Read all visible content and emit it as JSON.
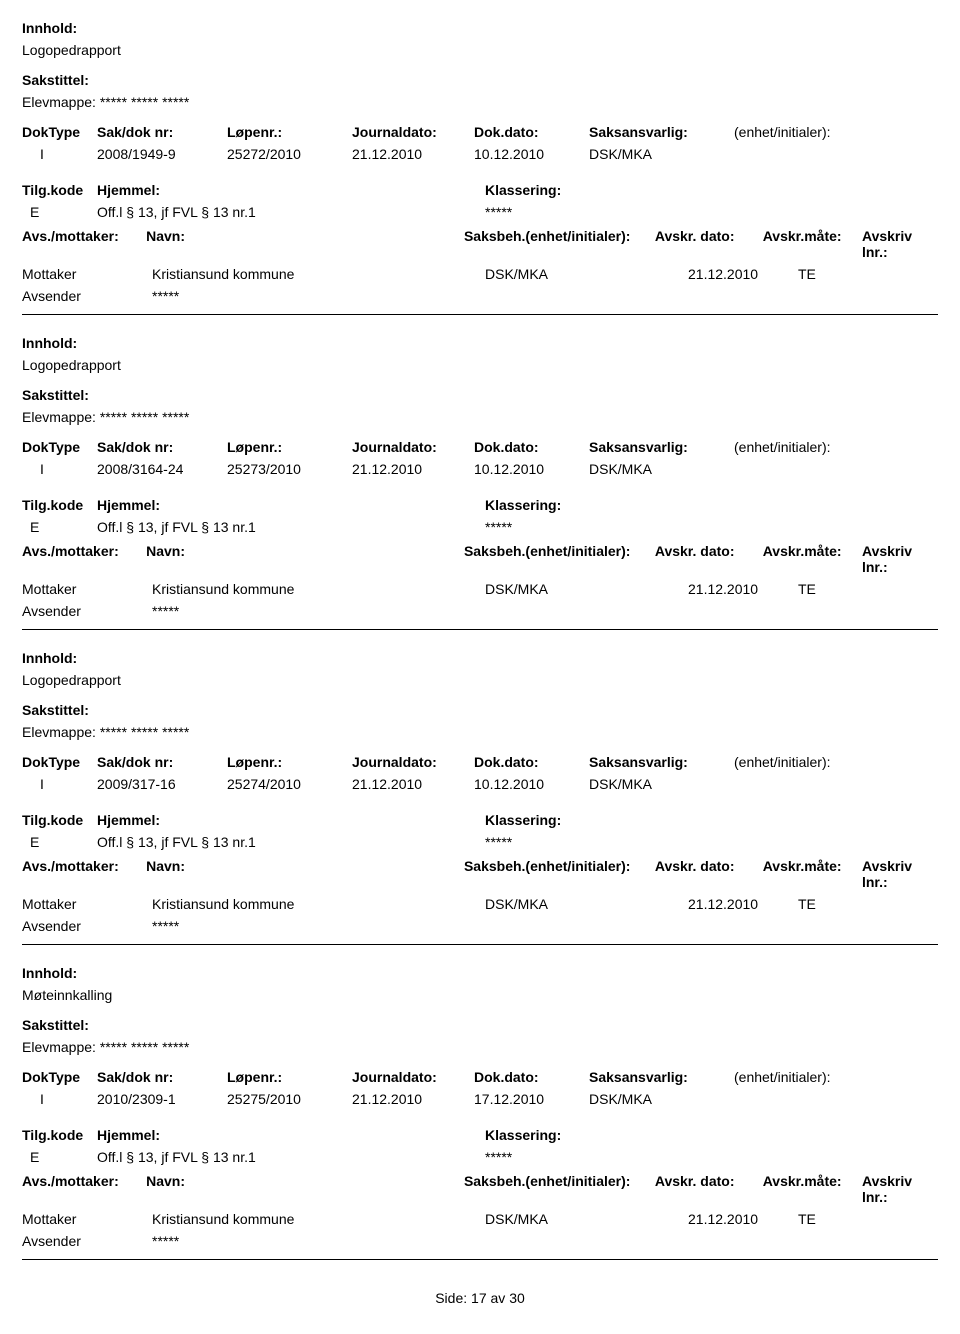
{
  "labels": {
    "innhold": "Innhold:",
    "sakstittel": "Sakstittel:",
    "doktype": "DokType",
    "sakdoknr": "Sak/dok nr:",
    "lopenr": "Løpenr.:",
    "journaldato": "Journaldato:",
    "dokdato": "Dok.dato:",
    "saksansvarlig": "Saksansvarlig:",
    "enhetinit": "(enhet/initialer):",
    "tilgkode": "Tilg.kode",
    "hjemmel": "Hjemmel:",
    "klassering": "Klassering:",
    "avsmottaker": "Avs./mottaker:",
    "navn": "Navn:",
    "saksbeh": "Saksbeh.(enhet/initialer):",
    "avskrdato": "Avskr. dato:",
    "avskrmate": "Avskr.måte:",
    "avskrivlnr": "Avskriv lnr.:",
    "mottaker": "Mottaker",
    "avsender": "Avsender"
  },
  "records": [
    {
      "innhold": "Logopedrapport",
      "sakstittel": "Elevmappe: ***** ***** *****",
      "doktype": "I",
      "sakdoknr": "2008/1949-9",
      "lopenr": "25272/2010",
      "journaldato": "21.12.2010",
      "dokdato": "10.12.2010",
      "saksansvarlig": "DSK/MKA",
      "tilgkode": "E",
      "hjemmel": "Off.l § 13, jf FVL § 13 nr.1",
      "klassering": "*****",
      "mottaker_navn": "Kristiansund kommune",
      "mottaker_saksbeh": "DSK/MKA",
      "mottaker_avskrdato": "21.12.2010",
      "mottaker_avskrmate": "TE",
      "avsender_navn": "*****"
    },
    {
      "innhold": "Logopedrapport",
      "sakstittel": "Elevmappe: ***** ***** *****",
      "doktype": "I",
      "sakdoknr": "2008/3164-24",
      "lopenr": "25273/2010",
      "journaldato": "21.12.2010",
      "dokdato": "10.12.2010",
      "saksansvarlig": "DSK/MKA",
      "tilgkode": "E",
      "hjemmel": "Off.l § 13, jf FVL § 13 nr.1",
      "klassering": "*****",
      "mottaker_navn": "Kristiansund kommune",
      "mottaker_saksbeh": "DSK/MKA",
      "mottaker_avskrdato": "21.12.2010",
      "mottaker_avskrmate": "TE",
      "avsender_navn": "*****"
    },
    {
      "innhold": "Logopedrapport",
      "sakstittel": "Elevmappe: ***** ***** *****",
      "doktype": "I",
      "sakdoknr": "2009/317-16",
      "lopenr": "25274/2010",
      "journaldato": "21.12.2010",
      "dokdato": "10.12.2010",
      "saksansvarlig": "DSK/MKA",
      "tilgkode": "E",
      "hjemmel": "Off.l § 13, jf FVL § 13 nr.1",
      "klassering": "*****",
      "mottaker_navn": "Kristiansund kommune",
      "mottaker_saksbeh": "DSK/MKA",
      "mottaker_avskrdato": "21.12.2010",
      "mottaker_avskrmate": "TE",
      "avsender_navn": "*****"
    },
    {
      "innhold": "Møteinnkalling",
      "sakstittel": "Elevmappe: ***** ***** *****",
      "doktype": "I",
      "sakdoknr": "2010/2309-1",
      "lopenr": "25275/2010",
      "journaldato": "21.12.2010",
      "dokdato": "17.12.2010",
      "saksansvarlig": "DSK/MKA",
      "tilgkode": "E",
      "hjemmel": "Off.l § 13, jf FVL § 13 nr.1",
      "klassering": "*****",
      "mottaker_navn": "Kristiansund kommune",
      "mottaker_saksbeh": "DSK/MKA",
      "mottaker_avskrdato": "21.12.2010",
      "mottaker_avskrmate": "TE",
      "avsender_navn": "*****"
    }
  ],
  "footer": {
    "side_label": "Side:",
    "page_current": "17",
    "page_sep": "av",
    "page_total": "30"
  }
}
